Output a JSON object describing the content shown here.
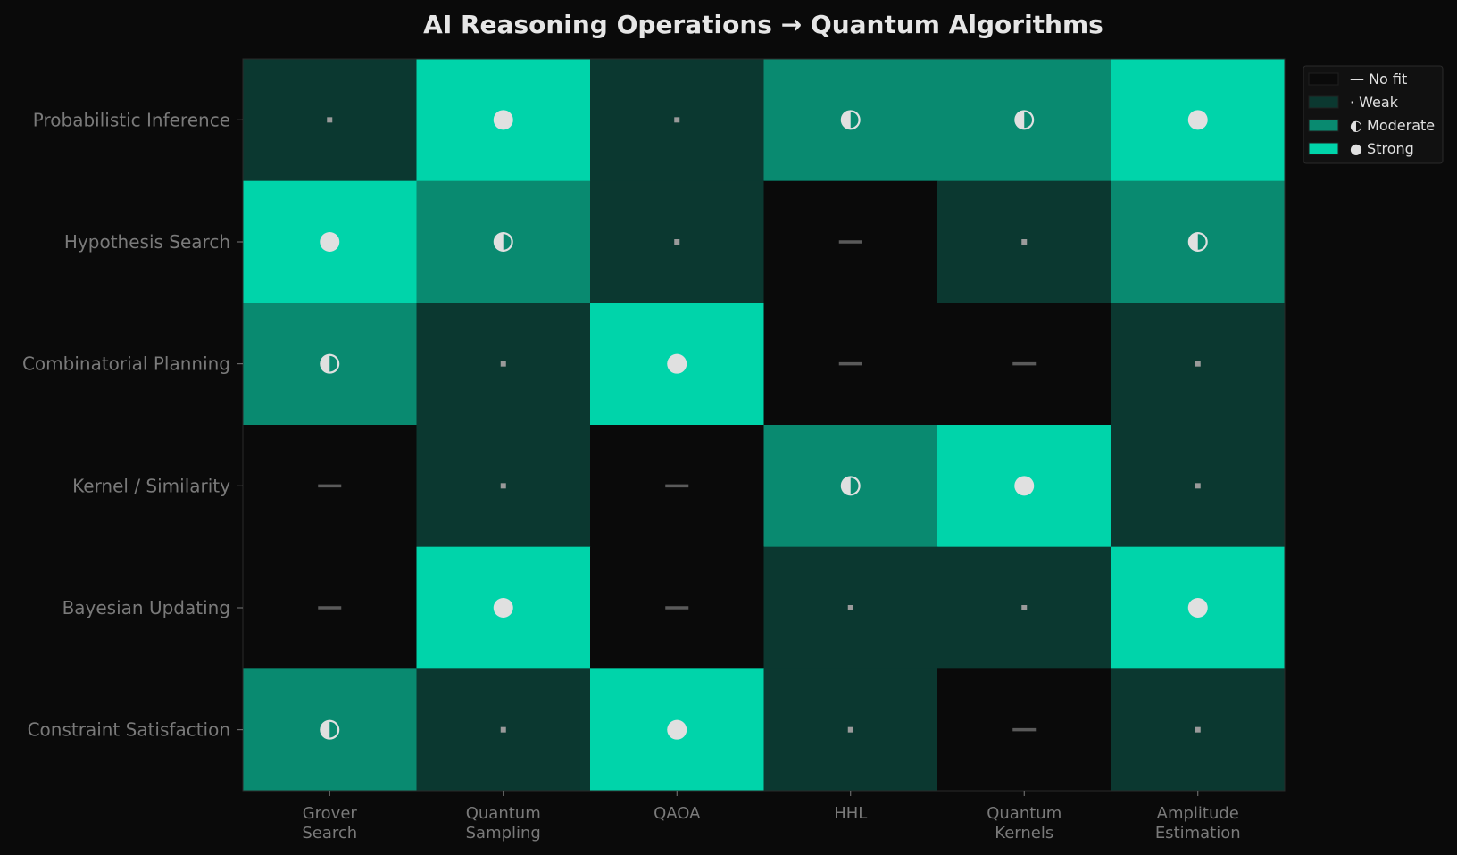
{
  "chart_data": {
    "type": "heatmap",
    "title": "AI Reasoning Operations → Quantum Algorithms",
    "rows": [
      "Probabilistic Inference",
      "Hypothesis Search",
      "Combinatorial Planning",
      "Kernel / Similarity",
      "Bayesian Updating",
      "Constraint Satisfaction"
    ],
    "columns": [
      [
        "Grover",
        "Search"
      ],
      [
        "Quantum",
        "Sampling"
      ],
      [
        "QAOA"
      ],
      [
        "HHL"
      ],
      [
        "Quantum",
        "Kernels"
      ],
      [
        "Amplitude",
        "Estimation"
      ]
    ],
    "values": [
      [
        1,
        3,
        1,
        2,
        2,
        3
      ],
      [
        3,
        2,
        1,
        0,
        1,
        2
      ],
      [
        2,
        1,
        3,
        0,
        0,
        1
      ],
      [
        0,
        1,
        0,
        2,
        3,
        1
      ],
      [
        0,
        3,
        0,
        1,
        1,
        3
      ],
      [
        2,
        1,
        3,
        1,
        0,
        1
      ]
    ],
    "levels": [
      {
        "value": 0,
        "label": "— No fit",
        "color": "#0a0a0a"
      },
      {
        "value": 1,
        "label": "· Weak",
        "color": "#0b3830"
      },
      {
        "value": 2,
        "label": "◐ Moderate",
        "color": "#098a70"
      },
      {
        "value": 3,
        "label": "● Strong",
        "color": "#00d4aa"
      }
    ],
    "legend_position": "upper-right-outside",
    "grid": false
  },
  "colors": {
    "background": "#0a0a0a",
    "title_text": "#e6e6e6",
    "axis_label_text": "#7a7a7a",
    "marker": "#e0e0e0",
    "dash_marker": "#5a5a5a",
    "dot_marker": "#9a9a9a",
    "frame": "#2a2a2a",
    "legend_bg": "#111111",
    "legend_border": "#2a2a2a",
    "legend_text": "#e0e0e0"
  }
}
